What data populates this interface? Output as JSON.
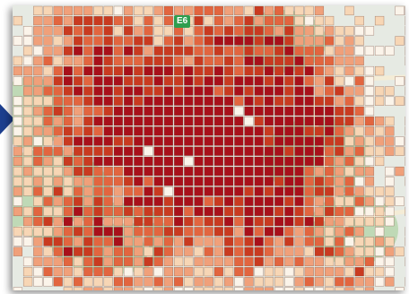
{
  "map": {
    "style": "density-grid-overlay",
    "route_badge": "E6",
    "colors": {
      "basemap_land": "#e6eae3",
      "basemap_green": "#b7d6ae",
      "road": "#f4ecd6",
      "grid_stroke": "#7a4a3a",
      "level_0": "#fbf4ea",
      "level_1": "#f7d6b5",
      "level_2": "#f0a07a",
      "level_3": "#e2653f",
      "level_4": "#c93a20",
      "level_5": "#a8101a"
    },
    "legend": []
  },
  "pointer": {
    "icon": "arrow-right-icon",
    "color": "#1d3f8f"
  }
}
